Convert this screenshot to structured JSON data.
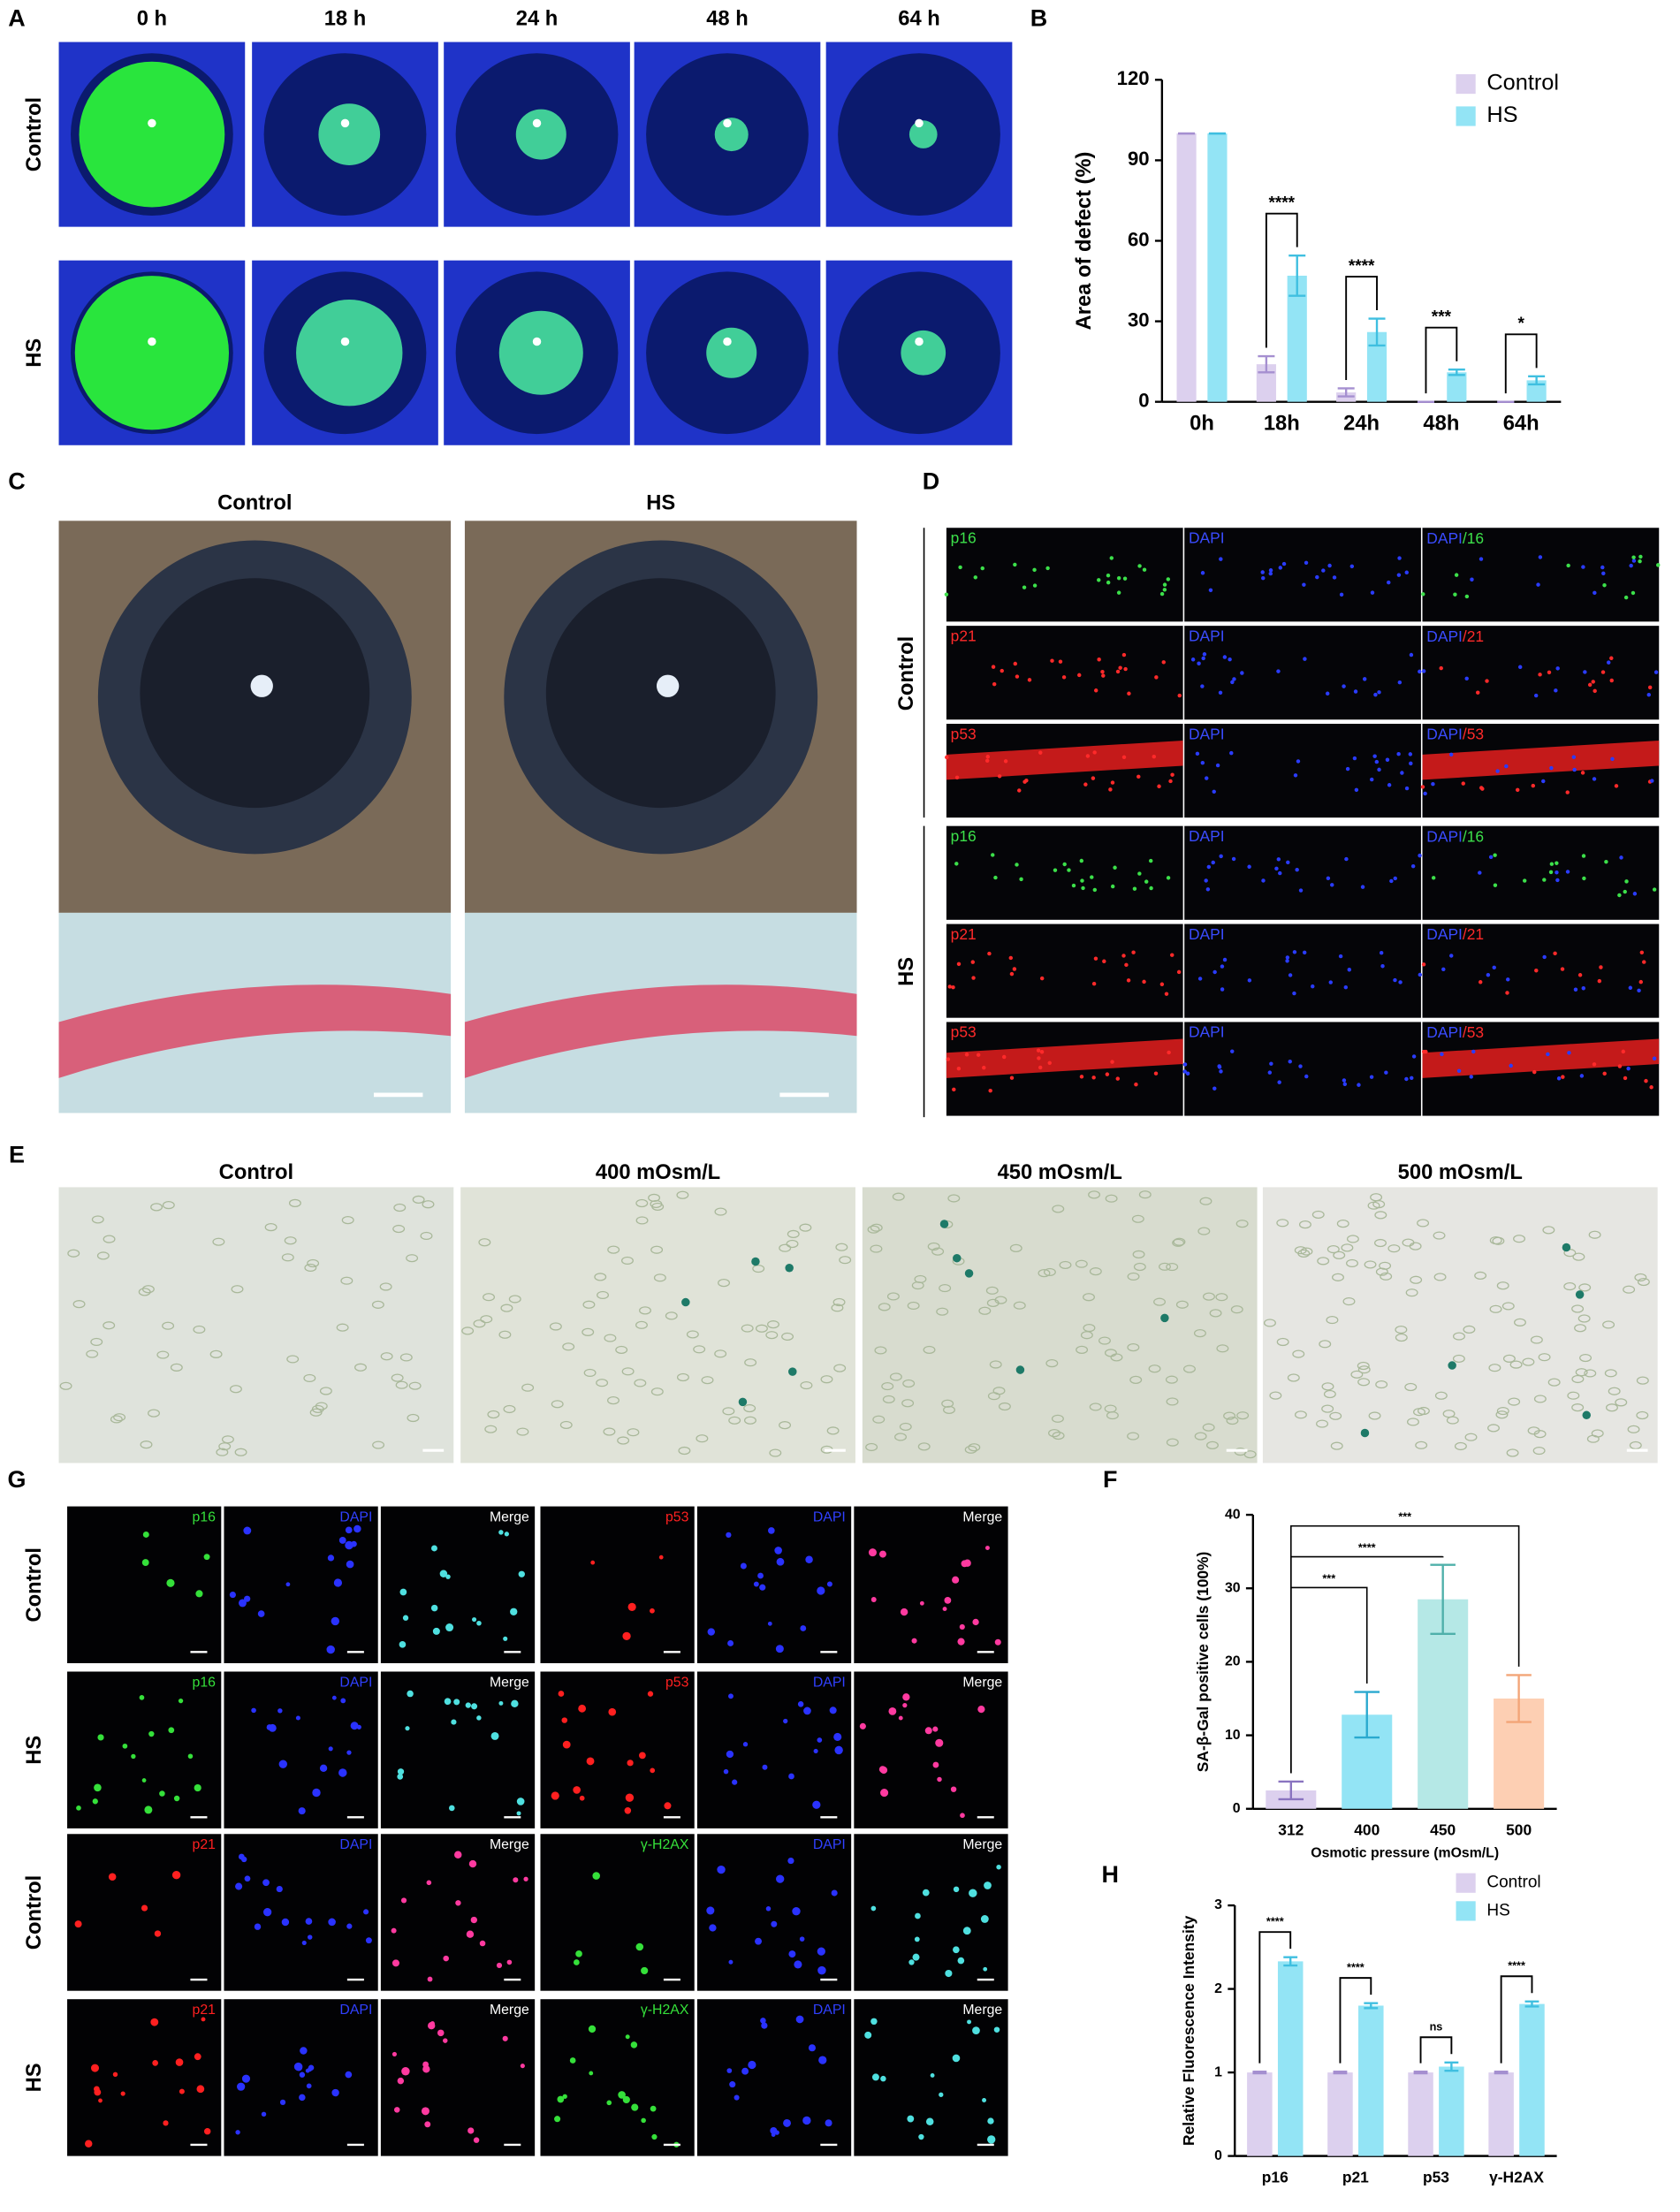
{
  "panel_letters": [
    "A",
    "B",
    "C",
    "D",
    "E",
    "F",
    "G",
    "H"
  ],
  "panel_a": {
    "columns": [
      "0 h",
      "18 h",
      "24 h",
      "48 h",
      "64 h"
    ],
    "rows": [
      "Control",
      "HS"
    ]
  },
  "panel_c": {
    "columns": [
      "Control",
      "HS"
    ]
  },
  "panel_d": {
    "groups": [
      "Control",
      "HS"
    ],
    "channels": [
      [
        "p16",
        "DAPI",
        "DAPI",
        "/16"
      ],
      [
        "p21",
        "DAPI",
        "DAPI",
        "/21"
      ],
      [
        "p53",
        "DAPI",
        "DAPI",
        "/53"
      ]
    ]
  },
  "panel_e": {
    "columns": [
      "Control",
      "400 mOsm/L",
      "450 mOsm/L",
      "500 mOsm/L"
    ]
  },
  "panel_g": {
    "rows": [
      "Control",
      "HS",
      "Control",
      "HS"
    ],
    "channels": [
      [
        "p16",
        "DAPI",
        "Merge",
        "p53",
        "DAPI",
        "Merge"
      ],
      [
        "p21",
        "DAPI",
        "Merge",
        "γ-H2AX",
        "DAPI",
        "Merge"
      ]
    ]
  },
  "chart_data": [
    {
      "type": "bar",
      "ylabel": "Area of defect (%)",
      "categories": [
        "0h",
        "18h",
        "24h",
        "48h",
        "64h"
      ],
      "series": [
        {
          "name": "Control",
          "color": "#dcd0ee",
          "error_color": "#a58fd0",
          "values": [
            100,
            14,
            3.5,
            0,
            0
          ],
          "errors": [
            0,
            3,
            1.5,
            0,
            0
          ]
        },
        {
          "name": "HS",
          "color": "#93e4f5",
          "error_color": "#3fbfe0",
          "values": [
            100,
            47,
            26,
            11,
            8
          ],
          "errors": [
            0,
            7.5,
            5,
            1,
            1.5
          ]
        }
      ],
      "ylim": [
        0,
        120
      ],
      "yticks": [
        0,
        30,
        60,
        90,
        120
      ],
      "significance": [
        null,
        "****",
        "****",
        "***",
        "*"
      ],
      "legend": "upper right"
    },
    {
      "type": "bar",
      "xlabel": "Osmotic pressure  (mOsm/L)",
      "ylabel": "SA-β-Gal positive cells (100%)",
      "categories": [
        "312",
        "400",
        "450",
        "500"
      ],
      "values": [
        2.5,
        12.8,
        28.5,
        15
      ],
      "errors": [
        1.2,
        3.1,
        4.7,
        3.2
      ],
      "colors": [
        "#dcd0ee",
        "#93e4f5",
        "#b5e8e6",
        "#fdcfb3"
      ],
      "error_colors": [
        "#8a74c0",
        "#2aa9cf",
        "#4fb0aa",
        "#f3a578"
      ],
      "ylim": [
        0,
        40
      ],
      "yticks": [
        0,
        10,
        20,
        30,
        40
      ],
      "significance": [
        null,
        "***",
        "****",
        "***"
      ]
    },
    {
      "type": "bar",
      "ylabel": "Relative Fluorescence Intensity",
      "categories": [
        "p16",
        "p21",
        "p53",
        "γ-H2AX"
      ],
      "series": [
        {
          "name": "Control",
          "color": "#dcd0ee",
          "error_color": "#a58fd0",
          "values": [
            1,
            1,
            1,
            1
          ],
          "errors": [
            0.01,
            0.01,
            0.01,
            0.01
          ]
        },
        {
          "name": "HS",
          "color": "#93e4f5",
          "error_color": "#3fbfe0",
          "values": [
            2.33,
            1.8,
            1.07,
            1.82
          ],
          "errors": [
            0.05,
            0.03,
            0.05,
            0.03
          ]
        }
      ],
      "ylim": [
        0,
        3
      ],
      "yticks": [
        0,
        1,
        2,
        3
      ],
      "significance": [
        "****",
        "****",
        "ns",
        "****"
      ],
      "legend": "upper right"
    }
  ]
}
